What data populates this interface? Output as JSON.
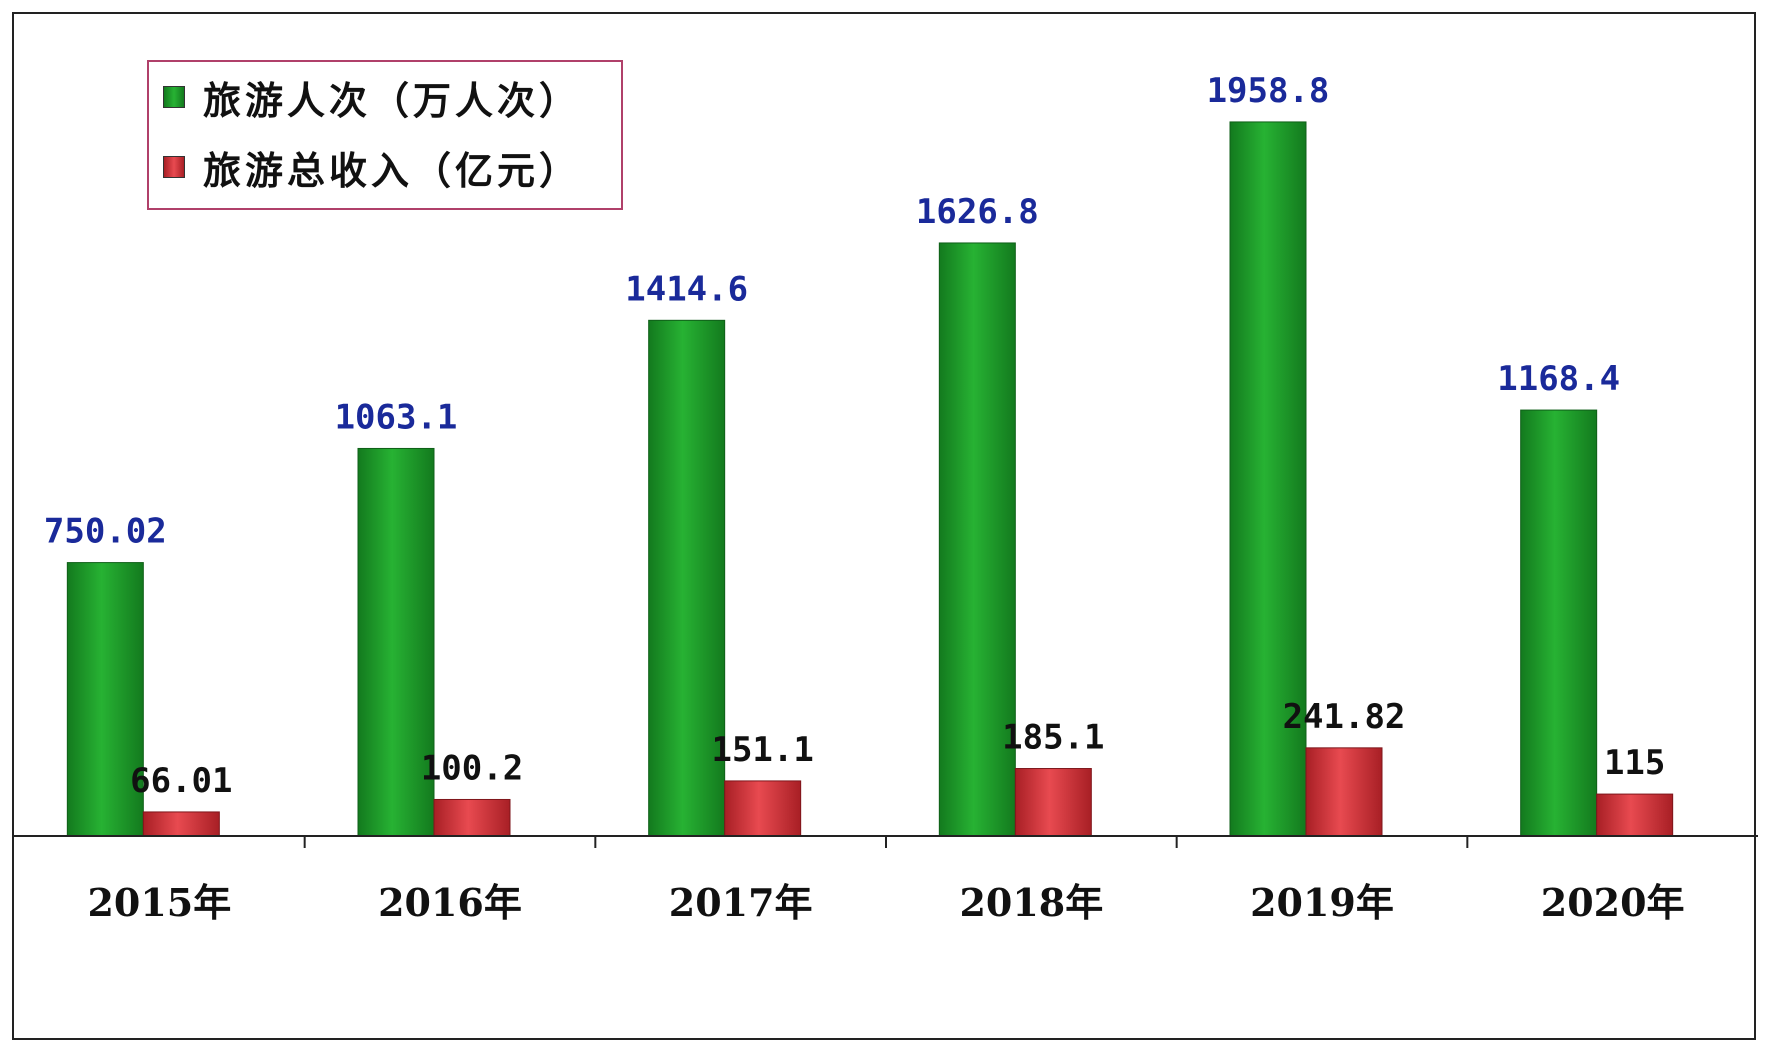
{
  "chart_data": {
    "type": "bar",
    "categories": [
      "2015年",
      "2016年",
      "2017年",
      "2018年",
      "2019年",
      "2020年"
    ],
    "series": [
      {
        "name": "旅游人次（万人次）",
        "values": [
          750.02,
          1063.1,
          1414.6,
          1626.8,
          1958.8,
          1168.4
        ],
        "value_labels": [
          "750.02",
          "1063.1",
          "1414.6",
          "1626.8",
          "1958.8",
          "1168.4"
        ],
        "color": "#1e9a2a",
        "label_color": "#1a2a9a"
      },
      {
        "name": "旅游总收入（亿元）",
        "values": [
          66.01,
          100.2,
          151.1,
          185.1,
          241.82,
          115
        ],
        "value_labels": [
          "66.01",
          "100.2",
          "151.1",
          "185.1",
          "241.82",
          "115"
        ],
        "color": "#d8333a",
        "label_color": "#111111"
      }
    ],
    "ylim": [
      0,
      2200
    ],
    "legend_position": "top-left",
    "grid": false,
    "title": "",
    "xlabel": "",
    "ylabel": ""
  }
}
